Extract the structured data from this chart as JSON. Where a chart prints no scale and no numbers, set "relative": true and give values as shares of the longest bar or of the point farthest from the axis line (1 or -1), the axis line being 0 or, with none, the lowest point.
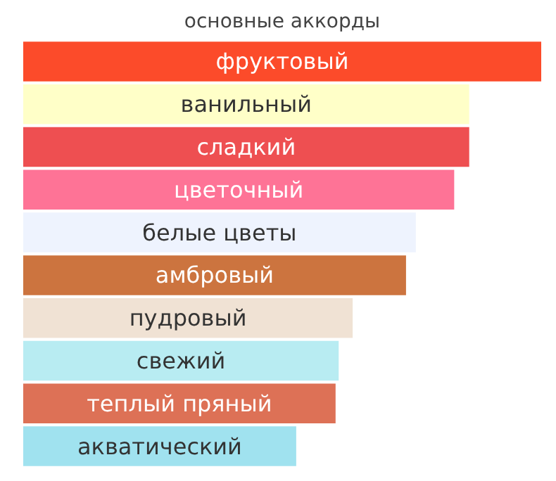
{
  "chart_data": {
    "type": "bar",
    "orientation": "horizontal",
    "relative": true,
    "title": "основные аккорды",
    "categories": [
      "фруктовый",
      "ванильный",
      "сладкий",
      "цветочный",
      "белые цветы",
      "амбровый",
      "пудровый",
      "свежий",
      "теплый пряный",
      "акватический"
    ],
    "values": [
      1,
      0.861,
      0.861,
      0.832,
      0.758,
      0.739,
      0.636,
      0.609,
      0.603,
      0.527
    ],
    "colors": [
      "#fc4b2a",
      "#ffffc8",
      "#ee4f51",
      "#fe7396",
      "#eef3fe",
      "#cc743f",
      "#f0e2d4",
      "#b8ecf2",
      "#dd7156",
      "#a0e2ef"
    ]
  }
}
